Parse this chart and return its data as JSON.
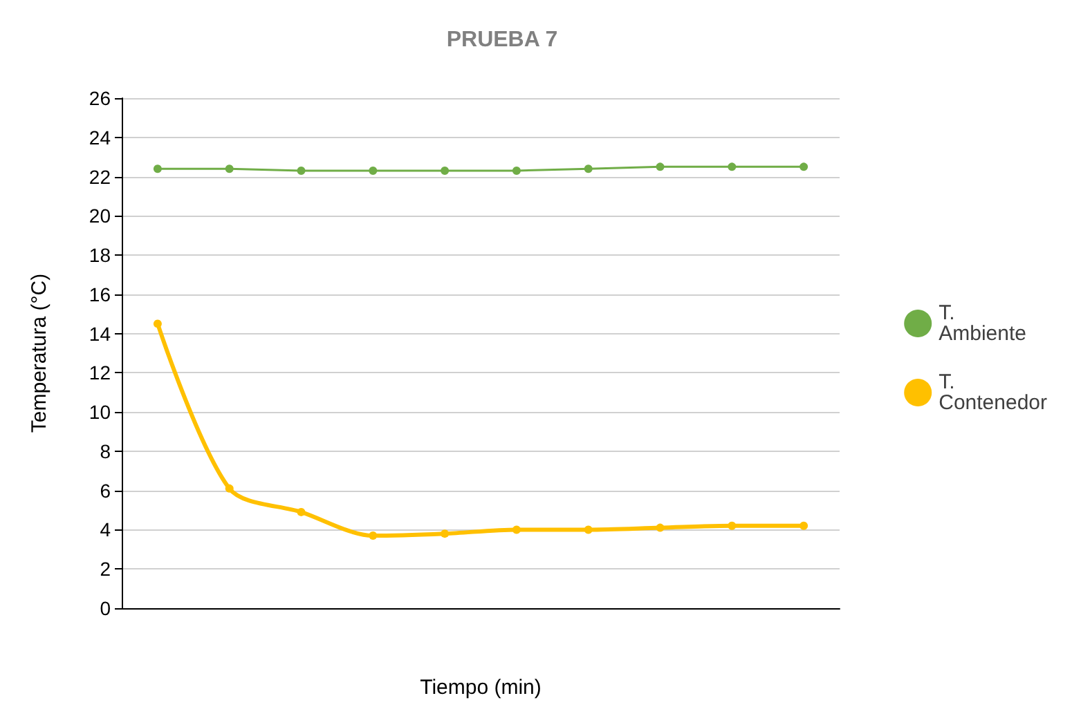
{
  "chart_data": {
    "type": "line",
    "title": "PRUEBA 7",
    "xlabel": "Tiempo (min)",
    "ylabel": "Temperatura (°C)",
    "categories": [
      null,
      null,
      null,
      null,
      null,
      null,
      null,
      null,
      null,
      null
    ],
    "series": [
      {
        "name": "T. Ambiente",
        "color": "#70ad47",
        "values": [
          22.4,
          22.4,
          22.3,
          22.3,
          22.3,
          22.3,
          22.4,
          22.5,
          22.5,
          22.5
        ]
      },
      {
        "name": "T. Contenedor",
        "color": "#ffc000",
        "values": [
          14.5,
          6.1,
          4.9,
          3.7,
          3.8,
          4.0,
          4.0,
          4.1,
          4.2,
          4.2
        ]
      }
    ],
    "ylim": [
      0,
      26
    ],
    "yticks": [
      0,
      2,
      4,
      6,
      8,
      10,
      12,
      14,
      16,
      18,
      20,
      22,
      24,
      26
    ],
    "grid": "y",
    "legend": "right",
    "marker": "circle",
    "tick_labels": "y"
  }
}
